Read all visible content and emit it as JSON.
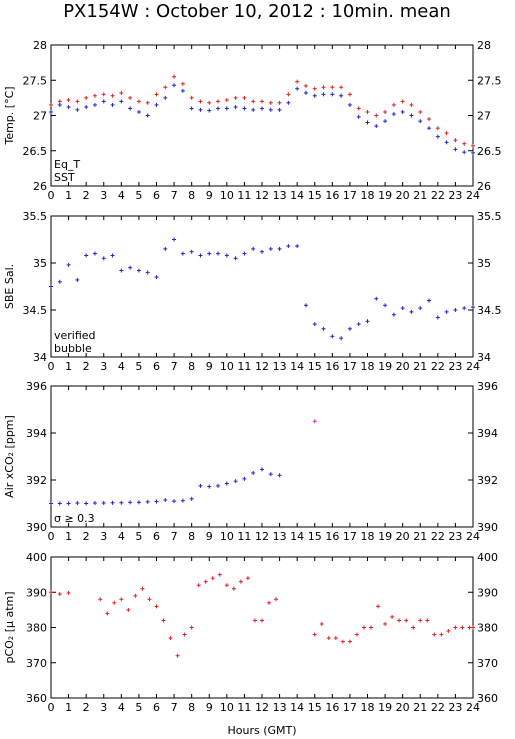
{
  "title": "PX154W : October 10, 2012 : 10min. mean",
  "xlabel": "Hours (GMT)",
  "x_ticks": [
    0,
    1,
    2,
    3,
    4,
    5,
    6,
    7,
    8,
    9,
    10,
    11,
    12,
    13,
    14,
    15,
    16,
    17,
    18,
    19,
    20,
    21,
    22,
    23,
    24
  ],
  "colors": {
    "red": "#dd2222",
    "blue": "#2222cc",
    "magenta": "#cc22cc",
    "black": "#000000"
  },
  "chart_data": [
    {
      "id": "temp",
      "type": "scatter",
      "ylabel": "Temp. [°C]",
      "xlim": [
        0,
        24
      ],
      "ylim": [
        26,
        28
      ],
      "y_ticks": [
        26,
        26.5,
        27,
        27.5,
        28
      ],
      "legend": [
        "Eq_T",
        "SST"
      ],
      "legend_placement": "bottom-left",
      "series": [
        {
          "name": "Eq_T",
          "color": "#dd2222",
          "x": [
            0,
            0.5,
            1,
            1.5,
            2,
            2.5,
            3,
            3.5,
            4,
            4.5,
            5,
            5.5,
            6,
            6.5,
            7,
            7.5,
            8,
            8.5,
            9,
            9.5,
            10,
            10.5,
            11,
            11.5,
            12,
            12.5,
            13,
            13.5,
            14,
            14.5,
            15,
            15.5,
            16,
            16.5,
            17,
            17.5,
            18,
            18.5,
            19,
            19.5,
            20,
            20.5,
            21,
            21.5,
            22,
            22.5,
            23,
            23.5,
            24
          ],
          "y": [
            27.15,
            27.2,
            27.22,
            27.2,
            27.25,
            27.28,
            27.3,
            27.28,
            27.32,
            27.25,
            27.2,
            27.18,
            27.3,
            27.4,
            27.55,
            27.45,
            27.25,
            27.2,
            27.18,
            27.2,
            27.22,
            27.25,
            27.25,
            27.2,
            27.2,
            27.18,
            27.18,
            27.3,
            27.48,
            27.42,
            27.38,
            27.4,
            27.4,
            27.4,
            27.3,
            27.1,
            27.05,
            27.0,
            27.05,
            27.15,
            27.2,
            27.15,
            27.05,
            26.95,
            26.82,
            26.75,
            26.65,
            26.6,
            26.57
          ]
        },
        {
          "name": "SST",
          "color": "#2222cc",
          "x": [
            0,
            0.5,
            1,
            1.5,
            2,
            2.5,
            3,
            3.5,
            4,
            4.5,
            5,
            5.5,
            6,
            6.5,
            7,
            7.5,
            8,
            8.5,
            9,
            9.5,
            10,
            10.5,
            11,
            11.5,
            12,
            12.5,
            13,
            13.5,
            14,
            14.5,
            15,
            15.5,
            16,
            16.5,
            17,
            17.5,
            18,
            18.5,
            19,
            19.5,
            20,
            20.5,
            21,
            21.5,
            22,
            22.5,
            23,
            23.5,
            24
          ],
          "y": [
            27.05,
            27.15,
            27.12,
            27.08,
            27.12,
            27.15,
            27.2,
            27.15,
            27.2,
            27.1,
            27.05,
            27.0,
            27.15,
            27.25,
            27.43,
            27.35,
            27.1,
            27.08,
            27.07,
            27.1,
            27.1,
            27.12,
            27.1,
            27.08,
            27.1,
            27.08,
            27.08,
            27.18,
            27.38,
            27.32,
            27.28,
            27.3,
            27.3,
            27.28,
            27.15,
            26.98,
            26.9,
            26.85,
            26.92,
            27.02,
            27.05,
            27.0,
            26.92,
            26.82,
            26.7,
            26.62,
            26.52,
            26.48,
            26.47
          ]
        }
      ]
    },
    {
      "id": "sal",
      "type": "scatter",
      "ylabel": "SBE Sal.",
      "xlim": [
        0,
        24
      ],
      "ylim": [
        34,
        35.5
      ],
      "y_ticks": [
        34,
        34.5,
        35,
        35.5
      ],
      "legend": [
        "verified",
        "bubble"
      ],
      "legend_placement": "bottom-left",
      "series": [
        {
          "name": "verified",
          "color": "#2222cc",
          "x": [
            0,
            0.5,
            1,
            1.5,
            2,
            2.5,
            3,
            3.5,
            4,
            4.5,
            5,
            5.5,
            6,
            6.5,
            7,
            7.5,
            8,
            8.5,
            9,
            9.5,
            10,
            10.5,
            11,
            11.5,
            12,
            12.5,
            13,
            13.5,
            14,
            14.5,
            15,
            15.5,
            16,
            16.5,
            17,
            17.5,
            18,
            18.5,
            19,
            19.5,
            20,
            20.5,
            21,
            21.5,
            22,
            22.5,
            23,
            23.5,
            24
          ],
          "y": [
            34.75,
            34.8,
            34.98,
            34.82,
            35.08,
            35.1,
            35.05,
            35.08,
            34.92,
            34.95,
            34.92,
            34.9,
            34.85,
            35.15,
            35.25,
            35.1,
            35.12,
            35.08,
            35.1,
            35.1,
            35.08,
            35.05,
            35.1,
            35.15,
            35.12,
            35.15,
            35.15,
            35.18,
            35.18,
            34.55,
            34.35,
            34.3,
            34.22,
            34.2,
            34.3,
            34.35,
            34.38,
            34.62,
            34.55,
            34.45,
            34.52,
            34.48,
            34.52,
            34.6,
            34.42,
            34.48,
            34.5,
            34.52,
            34.53
          ]
        }
      ]
    },
    {
      "id": "xco2",
      "type": "scatter",
      "ylabel": "Air xCO₂ [ppm]",
      "xlim": [
        0,
        24
      ],
      "ylim": [
        390,
        396
      ],
      "y_ticks": [
        390,
        392,
        394,
        396
      ],
      "legend": [
        "σ ≥ 0.3"
      ],
      "legend_placement": "bottom-left",
      "series": [
        {
          "name": "",
          "color": "#2222cc",
          "x": [
            0,
            0.5,
            1,
            1.5,
            2,
            2.5,
            3,
            3.5,
            4,
            4.5,
            5,
            5.5,
            6,
            6.5,
            7,
            7.5,
            8,
            8.5,
            9,
            9.5,
            10,
            10.5,
            11,
            11.5,
            12,
            12.5,
            13
          ],
          "y": [
            391.0,
            391.0,
            391.0,
            391.02,
            391.0,
            391.02,
            391.02,
            391.03,
            391.03,
            391.05,
            391.05,
            391.07,
            391.08,
            391.15,
            391.1,
            391.12,
            391.2,
            391.75,
            391.72,
            391.75,
            391.85,
            391.95,
            392.05,
            392.3,
            392.45,
            392.25,
            392.2
          ]
        },
        {
          "name": "σ ≥ 0.3",
          "color": "#cc22cc",
          "x": [
            15
          ],
          "y": [
            394.5
          ]
        }
      ]
    },
    {
      "id": "pco2",
      "type": "scatter",
      "ylabel": "pCO₂ [μ atm]",
      "xlim": [
        0,
        24
      ],
      "ylim": [
        360,
        400
      ],
      "y_ticks": [
        360,
        370,
        380,
        390,
        400
      ],
      "series": [
        {
          "name": "",
          "color": "#dd2222",
          "x": [
            0,
            0.5,
            1,
            2.8,
            3.2,
            3.6,
            4,
            4.4,
            4.8,
            5.2,
            5.6,
            6,
            6.4,
            6.8,
            7.2,
            7.6,
            8,
            8.4,
            8.8,
            9.2,
            9.6,
            10,
            10.4,
            10.8,
            11.2,
            11.6,
            12,
            12.4,
            12.8,
            15,
            15.4,
            15.8,
            16.2,
            16.6,
            17,
            17.4,
            17.8,
            18.2,
            18.6,
            19,
            19.4,
            19.8,
            20.2,
            20.6,
            21,
            21.4,
            21.8,
            22.2,
            22.6,
            23,
            23.4,
            23.8,
            24
          ],
          "y": [
            390,
            389.5,
            389.8,
            388,
            384,
            387,
            388,
            385,
            389,
            391,
            388,
            386,
            382,
            377,
            372,
            378,
            380,
            392,
            393,
            394,
            395,
            392,
            391,
            393,
            394,
            382,
            382,
            387,
            388,
            378,
            381,
            377,
            377,
            376,
            376,
            378,
            380,
            380,
            386,
            381,
            383,
            382,
            382,
            380,
            382,
            382,
            378,
            378,
            379,
            380,
            380,
            380,
            380
          ]
        }
      ]
    }
  ]
}
